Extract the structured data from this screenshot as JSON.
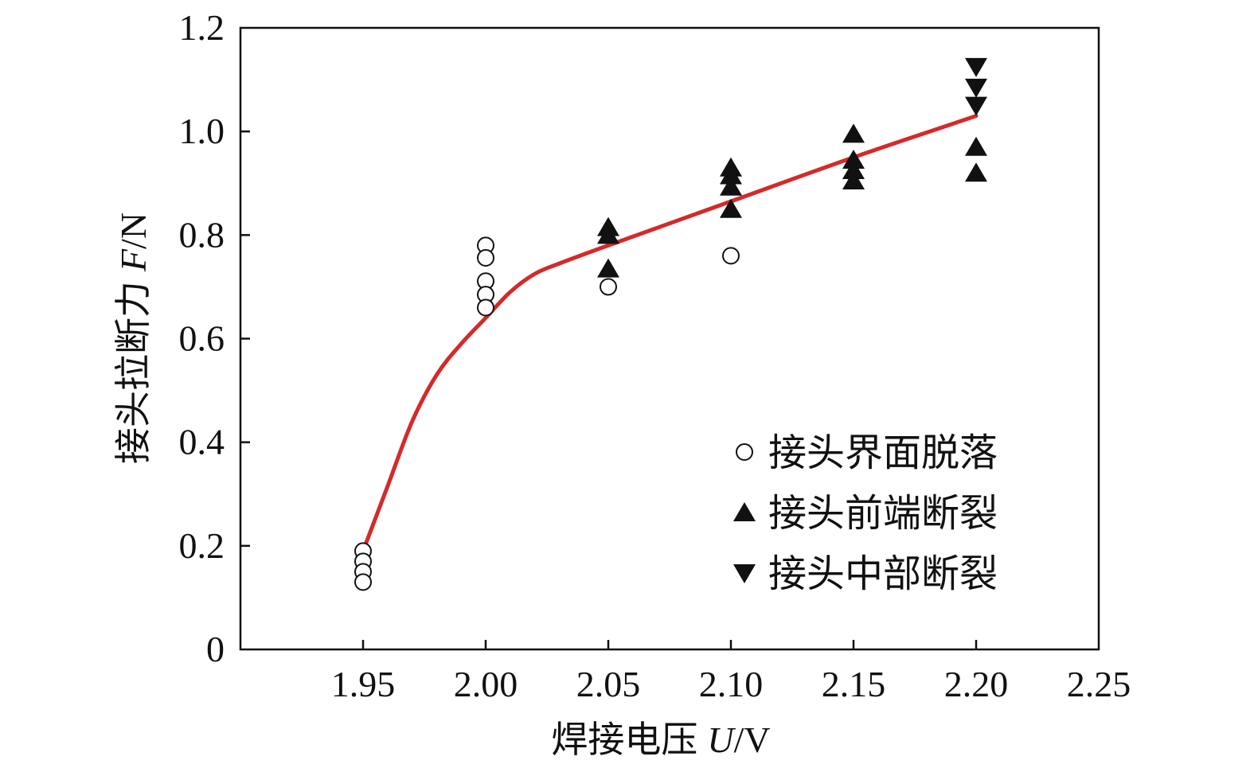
{
  "chart_data": {
    "type": "scatter",
    "xlabel": "焊接电压",
    "xlabel_var": "U",
    "xlabel_unit": "/V",
    "ylabel": "接头拉断力",
    "ylabel_var": "F",
    "ylabel_unit": "/N",
    "xlim": [
      1.9,
      2.25
    ],
    "ylim": [
      0,
      1.2
    ],
    "x_ticks": [
      "1.95",
      "2.00",
      "2.05",
      "2.10",
      "2.15",
      "2.20",
      "2.25"
    ],
    "y_ticks": [
      "0",
      "0.2",
      "0.4",
      "0.6",
      "0.8",
      "1.0",
      "1.2"
    ],
    "grid": false,
    "legend_position": "bottom-right",
    "series": [
      {
        "name": "接头界面脱落",
        "marker": "circle-open",
        "color": "#111111",
        "points": [
          [
            1.95,
            0.19
          ],
          [
            1.95,
            0.17
          ],
          [
            1.95,
            0.15
          ],
          [
            1.95,
            0.13
          ],
          [
            2.0,
            0.78
          ],
          [
            2.0,
            0.756
          ],
          [
            2.0,
            0.711
          ],
          [
            2.0,
            0.685
          ],
          [
            2.0,
            0.66
          ],
          [
            2.05,
            0.7
          ],
          [
            2.1,
            0.76
          ]
        ]
      },
      {
        "name": "接头前端断裂",
        "marker": "triangle-up",
        "color": "#111111",
        "points": [
          [
            2.05,
            0.815
          ],
          [
            2.05,
            0.8
          ],
          [
            2.05,
            0.735
          ],
          [
            2.1,
            0.93
          ],
          [
            2.1,
            0.915
          ],
          [
            2.1,
            0.893
          ],
          [
            2.1,
            0.85
          ],
          [
            2.15,
            0.995
          ],
          [
            2.15,
            0.945
          ],
          [
            2.15,
            0.925
          ],
          [
            2.15,
            0.905
          ],
          [
            2.2,
            0.97
          ],
          [
            2.2,
            0.92
          ]
        ]
      },
      {
        "name": "接头中部断裂",
        "marker": "triangle-down",
        "color": "#111111",
        "points": [
          [
            2.2,
            1.125
          ],
          [
            2.2,
            1.085
          ],
          [
            2.2,
            1.05
          ]
        ]
      }
    ],
    "fit_curve": {
      "color": "#d42a2a",
      "points": [
        [
          1.95,
          0.19
        ],
        [
          1.96,
          0.315
        ],
        [
          1.97,
          0.44
        ],
        [
          1.98,
          0.53
        ],
        [
          1.99,
          0.59
        ],
        [
          2.0,
          0.64
        ],
        [
          2.01,
          0.69
        ],
        [
          2.02,
          0.725
        ],
        [
          2.03,
          0.745
        ],
        [
          2.05,
          0.78
        ],
        [
          2.1,
          0.865
        ],
        [
          2.15,
          0.95
        ],
        [
          2.2,
          1.03
        ]
      ]
    }
  }
}
